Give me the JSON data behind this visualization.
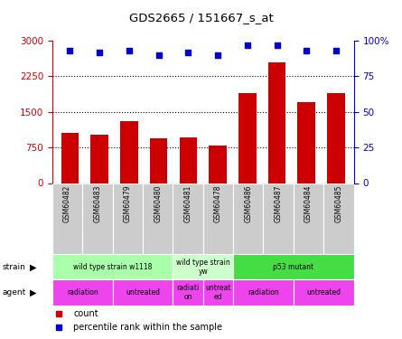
{
  "title": "GDS2665 / 151667_s_at",
  "samples": [
    "GSM60482",
    "GSM60483",
    "GSM60479",
    "GSM60480",
    "GSM60481",
    "GSM60478",
    "GSM60486",
    "GSM60487",
    "GSM60484",
    "GSM60485"
  ],
  "counts": [
    1050,
    1020,
    1300,
    950,
    970,
    800,
    1900,
    2550,
    1700,
    1900
  ],
  "percentiles": [
    93,
    92,
    93,
    90,
    92,
    90,
    97,
    97,
    93,
    93
  ],
  "ylim_left": [
    0,
    3000
  ],
  "ylim_right": [
    0,
    100
  ],
  "yticks_left": [
    0,
    750,
    1500,
    2250,
    3000
  ],
  "yticks_right": [
    0,
    25,
    50,
    75,
    100
  ],
  "ytick_labels_right": [
    "0",
    "25",
    "50",
    "75",
    "100%"
  ],
  "bar_color": "#cc0000",
  "scatter_color": "#0000cc",
  "strain_groups": [
    {
      "label": "wild type strain w1118",
      "start": 0,
      "end": 4,
      "color": "#aaffaa"
    },
    {
      "label": "wild type strain\nyw",
      "start": 4,
      "end": 6,
      "color": "#ccffcc"
    },
    {
      "label": "p53 mutant",
      "start": 6,
      "end": 10,
      "color": "#44dd44"
    }
  ],
  "agent_groups": [
    {
      "label": "radiation",
      "start": 0,
      "end": 2,
      "color": "#ee44ee"
    },
    {
      "label": "untreated",
      "start": 2,
      "end": 4,
      "color": "#ee44ee"
    },
    {
      "label": "radiati\non",
      "start": 4,
      "end": 5,
      "color": "#ee44ee"
    },
    {
      "label": "untreat\ned",
      "start": 5,
      "end": 6,
      "color": "#ee44ee"
    },
    {
      "label": "radiation",
      "start": 6,
      "end": 8,
      "color": "#ee44ee"
    },
    {
      "label": "untreated",
      "start": 8,
      "end": 10,
      "color": "#ee44ee"
    }
  ],
  "left_axis_color": "#cc0000",
  "right_axis_color": "#0000cc",
  "bg_color": "#ffffff",
  "sample_bg": "#cccccc"
}
